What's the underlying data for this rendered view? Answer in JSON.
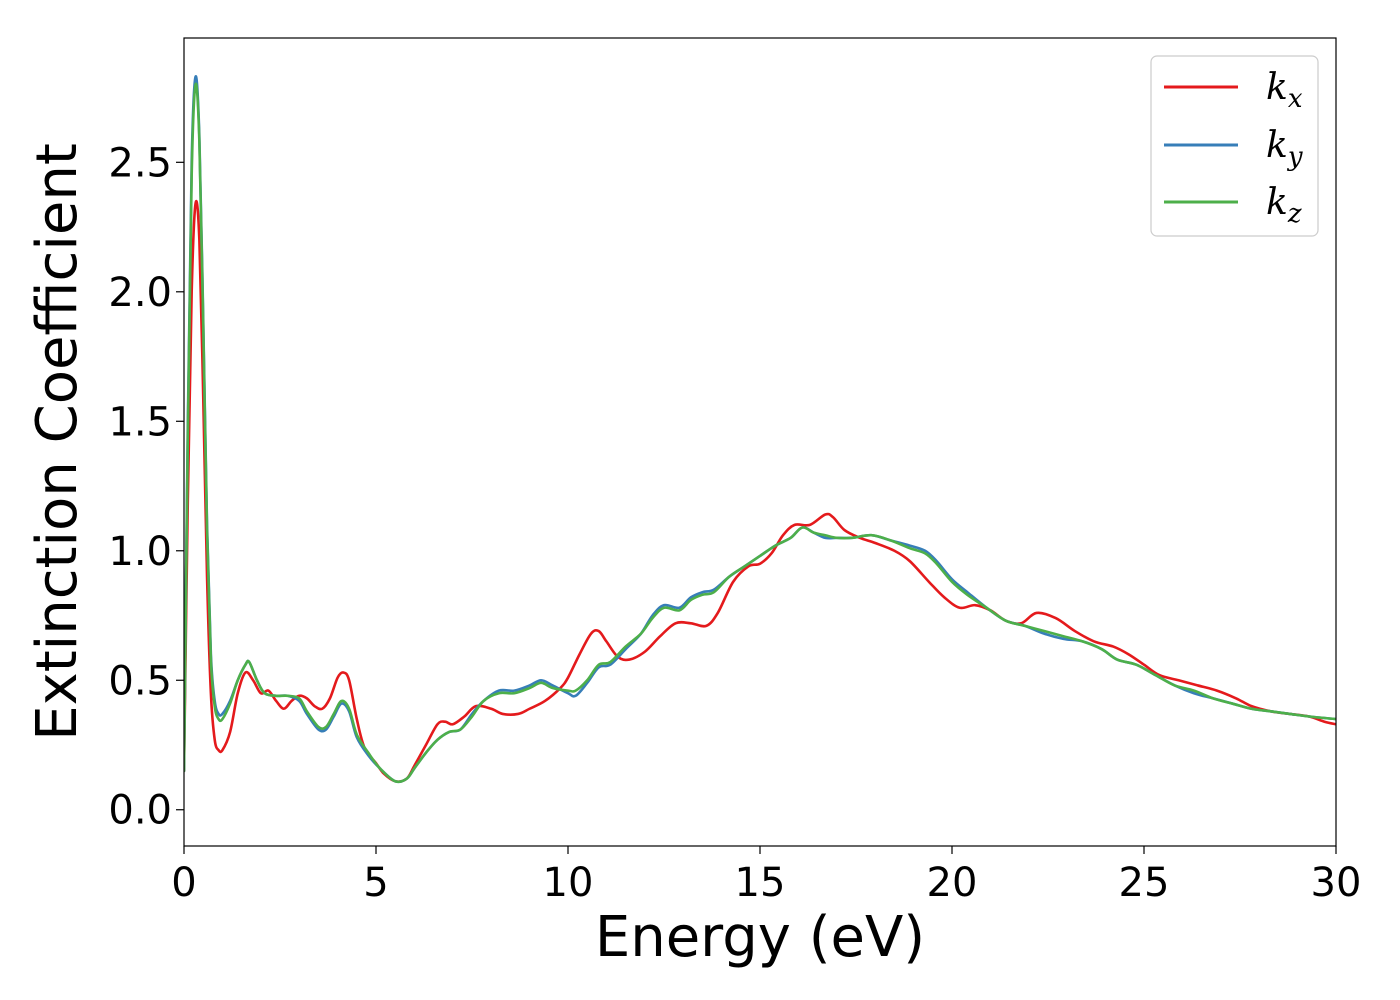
{
  "chart_data": {
    "type": "line",
    "title": "",
    "xlabel": "Energy (eV)",
    "ylabel": "Extinction Coefficient",
    "xlim": [
      0,
      30
    ],
    "ylim": [
      -0.14,
      2.98
    ],
    "xticks": [
      0,
      5,
      10,
      15,
      20,
      25,
      30
    ],
    "xtick_labels": [
      "0",
      "5",
      "10",
      "15",
      "20",
      "25",
      "30"
    ],
    "yticks": [
      0.0,
      0.5,
      1.0,
      1.5,
      2.0,
      2.5
    ],
    "ytick_labels": [
      "0.0",
      "0.5",
      "1.0",
      "1.5",
      "2.0",
      "2.5"
    ],
    "grid": false,
    "legend_position": "top-right",
    "series": [
      {
        "name": "k_x",
        "label_main": "k",
        "label_sub": "x",
        "color": "#e41a1c",
        "points": [
          [
            0,
            0.15
          ],
          [
            0.1,
            1.2
          ],
          [
            0.2,
            2.0
          ],
          [
            0.3,
            2.34
          ],
          [
            0.4,
            2.2
          ],
          [
            0.5,
            1.6
          ],
          [
            0.6,
            0.9
          ],
          [
            0.7,
            0.45
          ],
          [
            0.8,
            0.27
          ],
          [
            0.9,
            0.23
          ],
          [
            1.0,
            0.23
          ],
          [
            1.2,
            0.3
          ],
          [
            1.4,
            0.45
          ],
          [
            1.6,
            0.53
          ],
          [
            1.8,
            0.5
          ],
          [
            2.0,
            0.45
          ],
          [
            2.2,
            0.46
          ],
          [
            2.4,
            0.42
          ],
          [
            2.6,
            0.39
          ],
          [
            2.8,
            0.42
          ],
          [
            3.0,
            0.44
          ],
          [
            3.2,
            0.43
          ],
          [
            3.4,
            0.4
          ],
          [
            3.6,
            0.39
          ],
          [
            3.8,
            0.43
          ],
          [
            4.0,
            0.51
          ],
          [
            4.15,
            0.53
          ],
          [
            4.3,
            0.5
          ],
          [
            4.5,
            0.35
          ],
          [
            4.7,
            0.24
          ],
          [
            5.0,
            0.18
          ],
          [
            5.2,
            0.14
          ],
          [
            5.5,
            0.11
          ],
          [
            5.8,
            0.12
          ],
          [
            6.0,
            0.17
          ],
          [
            6.3,
            0.25
          ],
          [
            6.6,
            0.33
          ],
          [
            6.8,
            0.34
          ],
          [
            7.0,
            0.33
          ],
          [
            7.3,
            0.36
          ],
          [
            7.6,
            0.4
          ],
          [
            8.0,
            0.39
          ],
          [
            8.3,
            0.37
          ],
          [
            8.7,
            0.37
          ],
          [
            9.0,
            0.39
          ],
          [
            9.4,
            0.42
          ],
          [
            9.8,
            0.47
          ],
          [
            10.0,
            0.51
          ],
          [
            10.3,
            0.6
          ],
          [
            10.6,
            0.68
          ],
          [
            10.8,
            0.69
          ],
          [
            11.0,
            0.65
          ],
          [
            11.3,
            0.59
          ],
          [
            11.6,
            0.58
          ],
          [
            12.0,
            0.61
          ],
          [
            12.4,
            0.67
          ],
          [
            12.8,
            0.72
          ],
          [
            13.2,
            0.72
          ],
          [
            13.6,
            0.71
          ],
          [
            13.9,
            0.76
          ],
          [
            14.3,
            0.88
          ],
          [
            14.7,
            0.94
          ],
          [
            15.0,
            0.95
          ],
          [
            15.3,
            0.99
          ],
          [
            15.6,
            1.06
          ],
          [
            15.9,
            1.1
          ],
          [
            16.3,
            1.1
          ],
          [
            16.7,
            1.14
          ],
          [
            16.9,
            1.13
          ],
          [
            17.2,
            1.08
          ],
          [
            17.6,
            1.05
          ],
          [
            18.0,
            1.03
          ],
          [
            18.5,
            1.0
          ],
          [
            18.9,
            0.96
          ],
          [
            19.4,
            0.88
          ],
          [
            19.8,
            0.82
          ],
          [
            20.2,
            0.78
          ],
          [
            20.6,
            0.79
          ],
          [
            21.0,
            0.77
          ],
          [
            21.4,
            0.73
          ],
          [
            21.8,
            0.72
          ],
          [
            22.2,
            0.76
          ],
          [
            22.7,
            0.74
          ],
          [
            23.2,
            0.69
          ],
          [
            23.7,
            0.65
          ],
          [
            24.2,
            0.63
          ],
          [
            24.6,
            0.6
          ],
          [
            25.0,
            0.56
          ],
          [
            25.4,
            0.52
          ],
          [
            25.9,
            0.5
          ],
          [
            26.4,
            0.48
          ],
          [
            26.9,
            0.46
          ],
          [
            27.4,
            0.43
          ],
          [
            27.8,
            0.4
          ],
          [
            28.3,
            0.38
          ],
          [
            28.8,
            0.37
          ],
          [
            29.3,
            0.36
          ],
          [
            29.7,
            0.34
          ],
          [
            30.0,
            0.33
          ]
        ]
      },
      {
        "name": "k_y",
        "label_main": "k",
        "label_sub": "y",
        "color": "#377eb8",
        "points": [
          [
            0,
            0.15
          ],
          [
            0.1,
            1.5
          ],
          [
            0.2,
            2.5
          ],
          [
            0.3,
            2.83
          ],
          [
            0.4,
            2.6
          ],
          [
            0.5,
            1.9
          ],
          [
            0.6,
            1.1
          ],
          [
            0.7,
            0.6
          ],
          [
            0.8,
            0.42
          ],
          [
            0.9,
            0.37
          ],
          [
            1.0,
            0.37
          ],
          [
            1.2,
            0.42
          ],
          [
            1.4,
            0.5
          ],
          [
            1.6,
            0.56
          ],
          [
            1.7,
            0.57
          ],
          [
            1.9,
            0.5
          ],
          [
            2.1,
            0.45
          ],
          [
            2.4,
            0.44
          ],
          [
            2.7,
            0.44
          ],
          [
            3.0,
            0.42
          ],
          [
            3.2,
            0.37
          ],
          [
            3.5,
            0.31
          ],
          [
            3.7,
            0.31
          ],
          [
            3.9,
            0.36
          ],
          [
            4.1,
            0.41
          ],
          [
            4.3,
            0.38
          ],
          [
            4.5,
            0.28
          ],
          [
            4.8,
            0.21
          ],
          [
            5.1,
            0.16
          ],
          [
            5.5,
            0.11
          ],
          [
            5.8,
            0.12
          ],
          [
            6.0,
            0.16
          ],
          [
            6.3,
            0.22
          ],
          [
            6.6,
            0.27
          ],
          [
            6.9,
            0.3
          ],
          [
            7.2,
            0.31
          ],
          [
            7.5,
            0.37
          ],
          [
            7.8,
            0.42
          ],
          [
            8.2,
            0.46
          ],
          [
            8.6,
            0.46
          ],
          [
            9.0,
            0.48
          ],
          [
            9.3,
            0.5
          ],
          [
            9.6,
            0.48
          ],
          [
            10.0,
            0.45
          ],
          [
            10.2,
            0.44
          ],
          [
            10.5,
            0.49
          ],
          [
            10.8,
            0.55
          ],
          [
            11.1,
            0.56
          ],
          [
            11.5,
            0.62
          ],
          [
            11.9,
            0.68
          ],
          [
            12.2,
            0.75
          ],
          [
            12.5,
            0.79
          ],
          [
            12.9,
            0.78
          ],
          [
            13.2,
            0.82
          ],
          [
            13.5,
            0.84
          ],
          [
            13.8,
            0.85
          ],
          [
            14.2,
            0.9
          ],
          [
            14.6,
            0.94
          ],
          [
            15.0,
            0.98
          ],
          [
            15.4,
            1.02
          ],
          [
            15.8,
            1.05
          ],
          [
            16.1,
            1.09
          ],
          [
            16.4,
            1.07
          ],
          [
            16.7,
            1.05
          ],
          [
            17.0,
            1.05
          ],
          [
            17.4,
            1.05
          ],
          [
            17.9,
            1.06
          ],
          [
            18.4,
            1.04
          ],
          [
            18.9,
            1.02
          ],
          [
            19.3,
            1.0
          ],
          [
            19.6,
            0.96
          ],
          [
            20.0,
            0.89
          ],
          [
            20.4,
            0.84
          ],
          [
            20.9,
            0.78
          ],
          [
            21.4,
            0.73
          ],
          [
            21.9,
            0.71
          ],
          [
            22.4,
            0.68
          ],
          [
            22.9,
            0.66
          ],
          [
            23.4,
            0.65
          ],
          [
            23.9,
            0.62
          ],
          [
            24.3,
            0.58
          ],
          [
            24.8,
            0.56
          ],
          [
            25.3,
            0.52
          ],
          [
            25.8,
            0.48
          ],
          [
            26.3,
            0.45
          ],
          [
            26.8,
            0.43
          ],
          [
            27.3,
            0.41
          ],
          [
            27.8,
            0.39
          ],
          [
            28.3,
            0.38
          ],
          [
            28.8,
            0.37
          ],
          [
            29.3,
            0.36
          ],
          [
            30.0,
            0.35
          ]
        ]
      },
      {
        "name": "k_z",
        "label_main": "k",
        "label_sub": "z",
        "color": "#4daf4a",
        "points": [
          [
            0,
            0.15
          ],
          [
            0.1,
            1.45
          ],
          [
            0.2,
            2.45
          ],
          [
            0.3,
            2.8
          ],
          [
            0.4,
            2.58
          ],
          [
            0.5,
            1.88
          ],
          [
            0.6,
            1.08
          ],
          [
            0.7,
            0.58
          ],
          [
            0.8,
            0.4
          ],
          [
            0.9,
            0.35
          ],
          [
            1.0,
            0.35
          ],
          [
            1.2,
            0.41
          ],
          [
            1.4,
            0.5
          ],
          [
            1.6,
            0.56
          ],
          [
            1.7,
            0.57
          ],
          [
            1.9,
            0.5
          ],
          [
            2.1,
            0.45
          ],
          [
            2.4,
            0.44
          ],
          [
            2.7,
            0.44
          ],
          [
            3.0,
            0.43
          ],
          [
            3.2,
            0.38
          ],
          [
            3.5,
            0.32
          ],
          [
            3.7,
            0.32
          ],
          [
            3.9,
            0.37
          ],
          [
            4.1,
            0.42
          ],
          [
            4.3,
            0.39
          ],
          [
            4.5,
            0.29
          ],
          [
            4.8,
            0.22
          ],
          [
            5.1,
            0.16
          ],
          [
            5.5,
            0.11
          ],
          [
            5.8,
            0.12
          ],
          [
            6.0,
            0.16
          ],
          [
            6.3,
            0.22
          ],
          [
            6.6,
            0.27
          ],
          [
            6.9,
            0.3
          ],
          [
            7.2,
            0.31
          ],
          [
            7.5,
            0.36
          ],
          [
            7.8,
            0.42
          ],
          [
            8.2,
            0.45
          ],
          [
            8.6,
            0.45
          ],
          [
            9.0,
            0.47
          ],
          [
            9.3,
            0.49
          ],
          [
            9.6,
            0.47
          ],
          [
            10.0,
            0.46
          ],
          [
            10.2,
            0.46
          ],
          [
            10.5,
            0.5
          ],
          [
            10.8,
            0.56
          ],
          [
            11.1,
            0.57
          ],
          [
            11.5,
            0.63
          ],
          [
            11.9,
            0.68
          ],
          [
            12.2,
            0.74
          ],
          [
            12.5,
            0.78
          ],
          [
            12.9,
            0.77
          ],
          [
            13.2,
            0.81
          ],
          [
            13.5,
            0.83
          ],
          [
            13.8,
            0.84
          ],
          [
            14.2,
            0.9
          ],
          [
            14.6,
            0.94
          ],
          [
            15.0,
            0.98
          ],
          [
            15.4,
            1.02
          ],
          [
            15.8,
            1.05
          ],
          [
            16.1,
            1.09
          ],
          [
            16.4,
            1.07
          ],
          [
            16.7,
            1.06
          ],
          [
            17.0,
            1.05
          ],
          [
            17.4,
            1.05
          ],
          [
            17.9,
            1.06
          ],
          [
            18.4,
            1.04
          ],
          [
            18.9,
            1.01
          ],
          [
            19.3,
            0.99
          ],
          [
            19.6,
            0.95
          ],
          [
            20.0,
            0.88
          ],
          [
            20.4,
            0.83
          ],
          [
            20.9,
            0.78
          ],
          [
            21.4,
            0.73
          ],
          [
            21.9,
            0.71
          ],
          [
            22.4,
            0.69
          ],
          [
            22.9,
            0.67
          ],
          [
            23.4,
            0.65
          ],
          [
            23.9,
            0.62
          ],
          [
            24.3,
            0.58
          ],
          [
            24.8,
            0.56
          ],
          [
            25.3,
            0.52
          ],
          [
            25.8,
            0.48
          ],
          [
            26.3,
            0.46
          ],
          [
            26.8,
            0.43
          ],
          [
            27.3,
            0.41
          ],
          [
            27.8,
            0.39
          ],
          [
            28.3,
            0.38
          ],
          [
            28.8,
            0.37
          ],
          [
            29.3,
            0.36
          ],
          [
            30.0,
            0.35
          ]
        ]
      }
    ]
  }
}
